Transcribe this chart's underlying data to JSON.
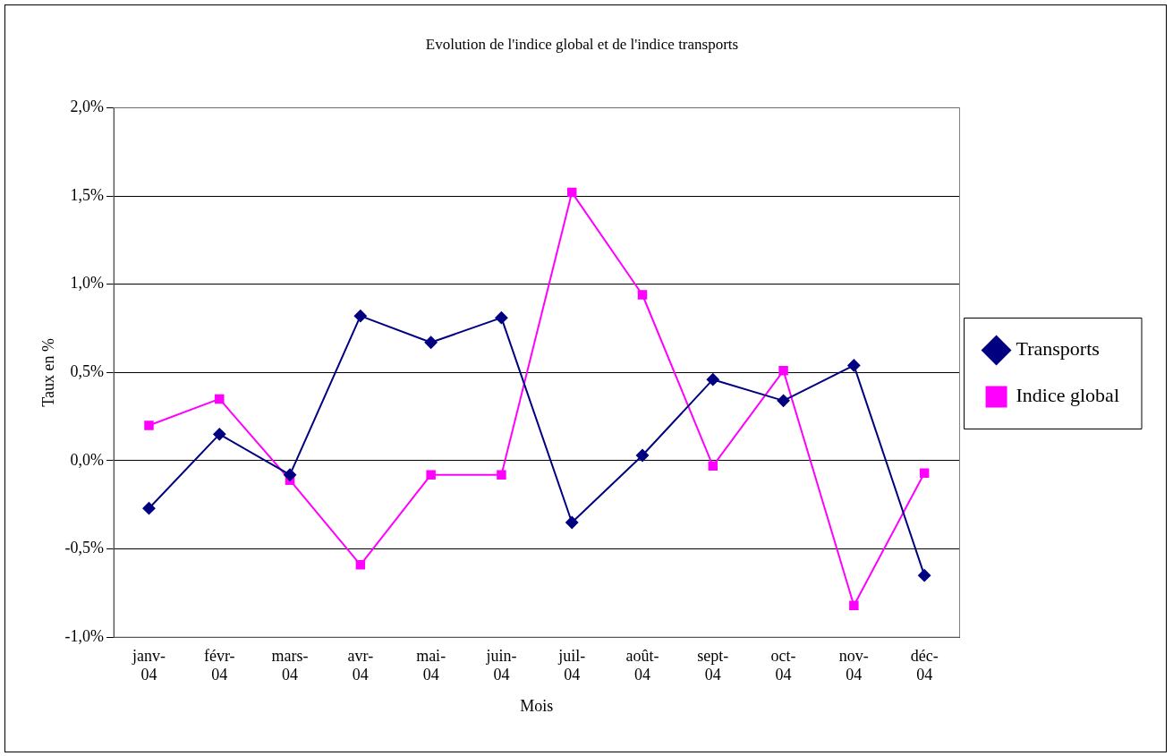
{
  "chart_data": {
    "type": "line",
    "title": "Evolution de l'indice global et de l'indice transports",
    "xlabel": "Mois",
    "ylabel": "Taux en %",
    "categories": [
      "janv-04",
      "févr-04",
      "mars-04",
      "avr-04",
      "mai-04",
      "juin-04",
      "juil-04",
      "août-04",
      "sept-04",
      "oct-04",
      "nov-04",
      "déc-04"
    ],
    "series": [
      {
        "name": "Transports",
        "color": "#000080",
        "marker": "diamond",
        "values": [
          -0.27,
          0.15,
          -0.08,
          0.82,
          0.67,
          0.81,
          -0.35,
          0.03,
          0.46,
          0.34,
          0.54,
          -0.65
        ]
      },
      {
        "name": "Indice global",
        "color": "#ff00ff",
        "marker": "square",
        "values": [
          0.2,
          0.35,
          -0.11,
          -0.59,
          -0.08,
          -0.08,
          1.52,
          0.94,
          -0.03,
          0.51,
          -0.82,
          -0.07
        ]
      }
    ],
    "ylim": [
      -1,
      2
    ],
    "yticks": [
      {
        "value": -1,
        "label": "-1,0%"
      },
      {
        "value": -0.5,
        "label": "-0,5%"
      },
      {
        "value": 0,
        "label": "0,0%"
      },
      {
        "value": 0.5,
        "label": "0,5%"
      },
      {
        "value": 1,
        "label": "1,0%"
      },
      {
        "value": 1.5,
        "label": "1,5%"
      },
      {
        "value": 2,
        "label": "2,0%"
      }
    ],
    "grid": "y",
    "legend": "right",
    "line_style": "solid"
  }
}
